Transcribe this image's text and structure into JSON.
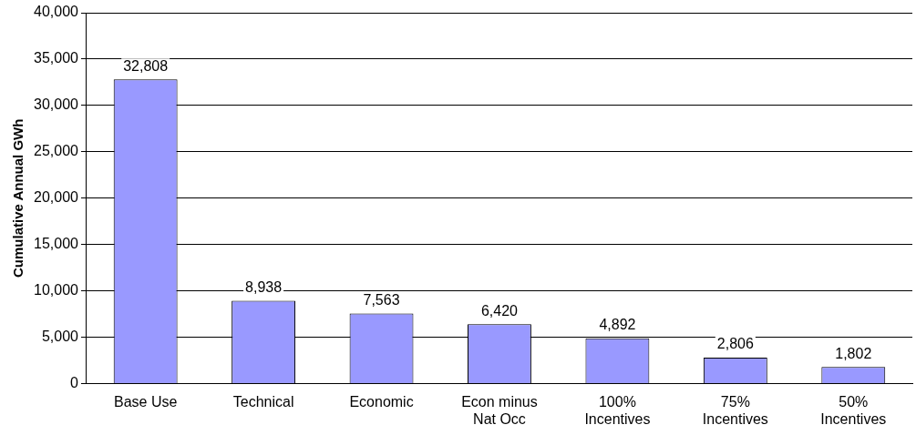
{
  "chart_data": {
    "type": "bar",
    "ylabel": "Cumulative Annual GWh",
    "categories": [
      "Base Use",
      "Technical",
      "Economic",
      "Econ minus\nNat Occ",
      "100%\nIncentives",
      "75%\nIncentives",
      "50%\nIncentives"
    ],
    "values": [
      32808,
      8938,
      7563,
      6420,
      4892,
      2806,
      1802
    ],
    "color": "#9999ff",
    "value_labels": [
      "32,808",
      "8,938",
      "7,563",
      "6,420",
      "4,892",
      "2,806",
      "1,802"
    ],
    "ylim": [
      0,
      40000
    ],
    "yticks": [
      0,
      {
        "value": 5000,
        "label": "5,000"
      },
      {
        "value": 10000,
        "label": "10,000"
      },
      {
        "value": 15000,
        "label": "15,000"
      },
      {
        "value": 20000,
        "label": "20,000"
      },
      {
        "value": 25000,
        "label": "25,000"
      },
      {
        "value": 30000,
        "label": "30,000"
      },
      {
        "value": 35000,
        "label": "35,000"
      },
      {
        "value": 40000,
        "label": "40,000"
      }
    ],
    "grid": "y",
    "legend": false
  }
}
